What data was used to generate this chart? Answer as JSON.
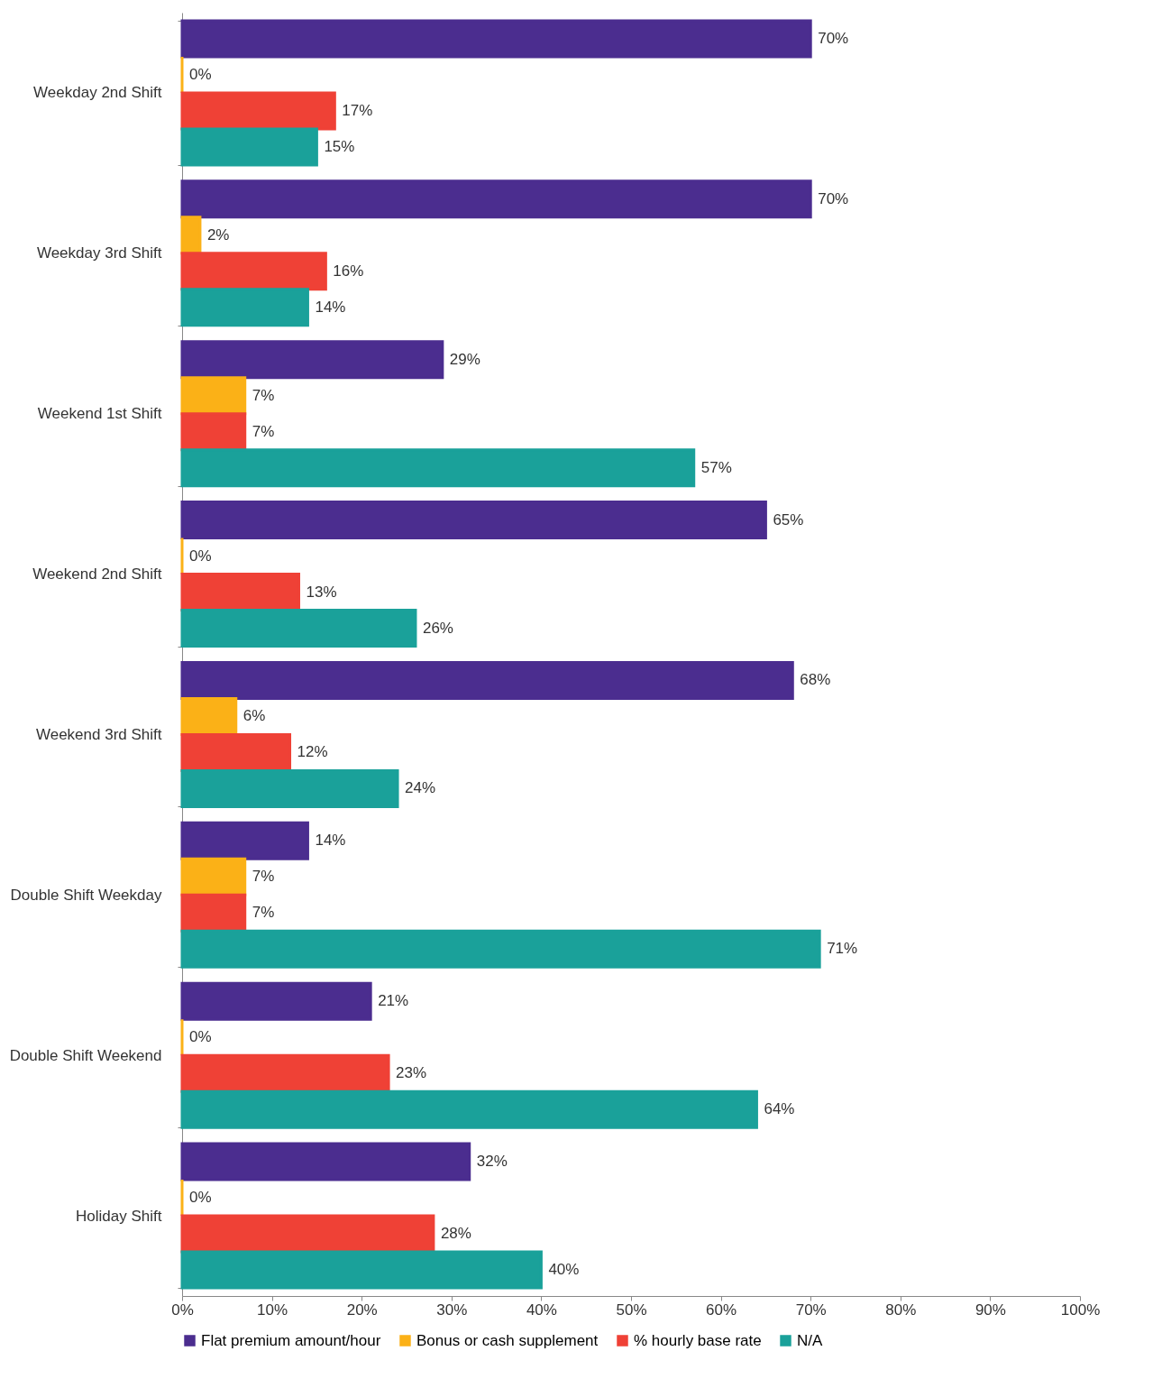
{
  "chart_data": {
    "type": "bar",
    "orientation": "horizontal",
    "categories": [
      "Weekday 2nd Shift",
      "Weekday 3rd Shift",
      "Weekend 1st Shift",
      "Weekend 2nd Shift",
      "Weekend 3rd Shift",
      "Double Shift Weekday",
      "Double Shift Weekend",
      "Holiday Shift"
    ],
    "series": [
      {
        "name": "Flat premium amount/hour",
        "color": "#4b2d8f",
        "values": [
          70,
          70,
          29,
          65,
          68,
          14,
          21,
          32
        ],
        "value_labels": [
          "70%",
          "70%",
          "29%",
          "65%",
          "68%",
          "14%",
          "21%",
          "32%"
        ]
      },
      {
        "name": "Bonus or cash supplement",
        "color": "#fbb117",
        "values": [
          0,
          2,
          7,
          0,
          6,
          7,
          0,
          0
        ],
        "value_labels": [
          "0%",
          "2%",
          "7%",
          "0%",
          "6%",
          "7%",
          "0%",
          "0%"
        ]
      },
      {
        "name": "% hourly base rate",
        "color": "#ef4136",
        "values": [
          17,
          16,
          7,
          13,
          12,
          7,
          23,
          28
        ],
        "value_labels": [
          "17%",
          "16%",
          "7%",
          "13%",
          "12%",
          "7%",
          "23%",
          "28%"
        ]
      },
      {
        "name": "N/A",
        "color": "#1aa19a",
        "values": [
          15,
          14,
          57,
          26,
          24,
          71,
          64,
          40
        ],
        "value_labels": [
          "15%",
          "14%",
          "57%",
          "26%",
          "24%",
          "71%",
          "64%",
          "40%"
        ]
      }
    ],
    "xlim": [
      0,
      100
    ],
    "xticks": [
      {
        "value": 0,
        "label": "0%"
      },
      {
        "value": 10,
        "label": "10%"
      },
      {
        "value": 20,
        "label": "20%"
      },
      {
        "value": 30,
        "label": "30%"
      },
      {
        "value": 40,
        "label": "40%"
      },
      {
        "value": 50,
        "label": "50%"
      },
      {
        "value": 60,
        "label": "60%"
      },
      {
        "value": 70,
        "label": "70%"
      },
      {
        "value": 80,
        "label": "80%"
      },
      {
        "value": 90,
        "label": "90%"
      },
      {
        "value": 100,
        "label": "100%"
      }
    ],
    "grid": false,
    "legend": "bottom"
  }
}
